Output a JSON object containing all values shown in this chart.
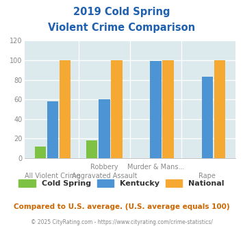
{
  "title_line1": "2019 Cold Spring",
  "title_line2": "Violent Crime Comparison",
  "cat_top": [
    "",
    "Robbery",
    "Murder & Mans...",
    ""
  ],
  "cat_bot": [
    "All Violent Crime",
    "Aggravated Assault",
    "",
    "Rape"
  ],
  "cold_spring": [
    12,
    18,
    0,
    0
  ],
  "kentucky": [
    58,
    60,
    99,
    83
  ],
  "national": [
    100,
    100,
    100,
    100
  ],
  "color_cold_spring": "#7dc242",
  "color_kentucky": "#4d94d4",
  "color_national": "#f5a832",
  "ylim": [
    0,
    120
  ],
  "yticks": [
    0,
    20,
    40,
    60,
    80,
    100,
    120
  ],
  "background_color": "#ddeaed",
  "title_color": "#2060b0",
  "legend_label_cs": "Cold Spring",
  "legend_label_ky": "Kentucky",
  "legend_label_na": "National",
  "footnote1": "Compared to U.S. average. (U.S. average equals 100)",
  "footnote2": "© 2025 CityRating.com - https://www.cityrating.com/crime-statistics/",
  "footnote1_color": "#cc6600",
  "footnote2_color": "#888888"
}
